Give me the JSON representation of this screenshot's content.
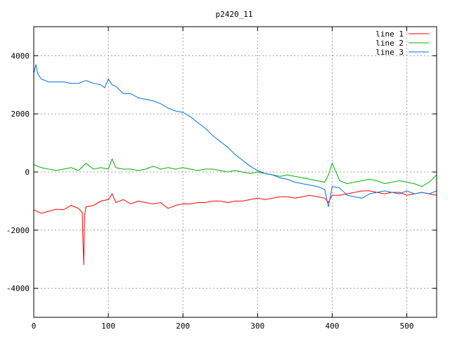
{
  "chart_data": {
    "type": "line",
    "title": "p2420_11",
    "xlabel": "",
    "ylabel": "",
    "xlim": [
      0,
      540
    ],
    "ylim": [
      -5000,
      5000
    ],
    "xticks": [
      0,
      100,
      200,
      300,
      400,
      500
    ],
    "yticks": [
      -4000,
      -2000,
      0,
      2000,
      4000
    ],
    "grid": true,
    "legend_position": "top-right",
    "series": [
      {
        "name": "line 1",
        "color": "#ff0000",
        "x": [
          0,
          10,
          20,
          30,
          40,
          50,
          60,
          65,
          66,
          67,
          68,
          70,
          80,
          90,
          100,
          105,
          110,
          120,
          130,
          140,
          150,
          160,
          170,
          180,
          190,
          200,
          210,
          220,
          230,
          240,
          250,
          260,
          270,
          280,
          290,
          300,
          310,
          320,
          330,
          340,
          350,
          360,
          370,
          380,
          390,
          395,
          400,
          410,
          420,
          430,
          440,
          450,
          460,
          470,
          480,
          490,
          500,
          510,
          520,
          530,
          540
        ],
        "y": [
          -1300,
          -1420,
          -1350,
          -1280,
          -1300,
          -1150,
          -1250,
          -1400,
          -2400,
          -3200,
          -1500,
          -1200,
          -1150,
          -1000,
          -950,
          -750,
          -1050,
          -950,
          -1100,
          -1000,
          -1050,
          -1100,
          -1050,
          -1250,
          -1150,
          -1100,
          -1100,
          -1050,
          -1050,
          -1000,
          -1000,
          -1050,
          -1000,
          -1000,
          -950,
          -900,
          -950,
          -900,
          -850,
          -850,
          -900,
          -850,
          -800,
          -850,
          -900,
          -1050,
          -800,
          -800,
          -750,
          -700,
          -650,
          -650,
          -700,
          -750,
          -700,
          -700,
          -800,
          -750,
          -700,
          -750,
          -800
        ]
      },
      {
        "name": "line 2",
        "color": "#00b000",
        "x": [
          0,
          10,
          20,
          30,
          40,
          50,
          60,
          70,
          80,
          90,
          100,
          105,
          110,
          120,
          130,
          140,
          150,
          160,
          170,
          180,
          190,
          200,
          210,
          220,
          230,
          240,
          250,
          260,
          270,
          280,
          290,
          300,
          310,
          320,
          330,
          340,
          350,
          360,
          370,
          380,
          390,
          395,
          400,
          410,
          420,
          430,
          440,
          450,
          460,
          470,
          480,
          490,
          500,
          510,
          520,
          530,
          540
        ],
        "y": [
          250,
          150,
          100,
          50,
          100,
          150,
          50,
          300,
          100,
          150,
          100,
          450,
          150,
          100,
          100,
          50,
          100,
          200,
          100,
          150,
          100,
          150,
          100,
          50,
          100,
          100,
          50,
          0,
          50,
          0,
          -50,
          0,
          -50,
          -100,
          -150,
          -100,
          -150,
          -200,
          -250,
          -300,
          -350,
          -100,
          300,
          -300,
          -400,
          -350,
          -300,
          -250,
          -300,
          -400,
          -350,
          -300,
          -350,
          -400,
          -500,
          -350,
          -100
        ]
      },
      {
        "name": "line 3",
        "color": "#0070e0",
        "x": [
          0,
          3,
          5,
          10,
          20,
          30,
          40,
          50,
          60,
          70,
          80,
          90,
          95,
          100,
          105,
          110,
          120,
          130,
          140,
          150,
          160,
          170,
          180,
          190,
          200,
          210,
          220,
          230,
          240,
          250,
          260,
          270,
          280,
          290,
          300,
          310,
          320,
          330,
          340,
          350,
          360,
          370,
          380,
          390,
          395,
          400,
          410,
          420,
          430,
          440,
          450,
          460,
          470,
          480,
          490,
          500,
          510,
          520,
          530,
          540
        ],
        "y": [
          3400,
          3700,
          3400,
          3200,
          3100,
          3100,
          3100,
          3050,
          3050,
          3150,
          3050,
          3000,
          2900,
          3200,
          3000,
          2950,
          2700,
          2700,
          2550,
          2500,
          2450,
          2350,
          2200,
          2100,
          2050,
          1900,
          1700,
          1500,
          1250,
          1050,
          850,
          600,
          400,
          200,
          50,
          -50,
          -100,
          -200,
          -250,
          -350,
          -400,
          -450,
          -500,
          -600,
          -1200,
          -500,
          -550,
          -800,
          -850,
          -900,
          -750,
          -700,
          -650,
          -700,
          -750,
          -650,
          -750,
          -700,
          -750,
          -650
        ]
      }
    ]
  }
}
